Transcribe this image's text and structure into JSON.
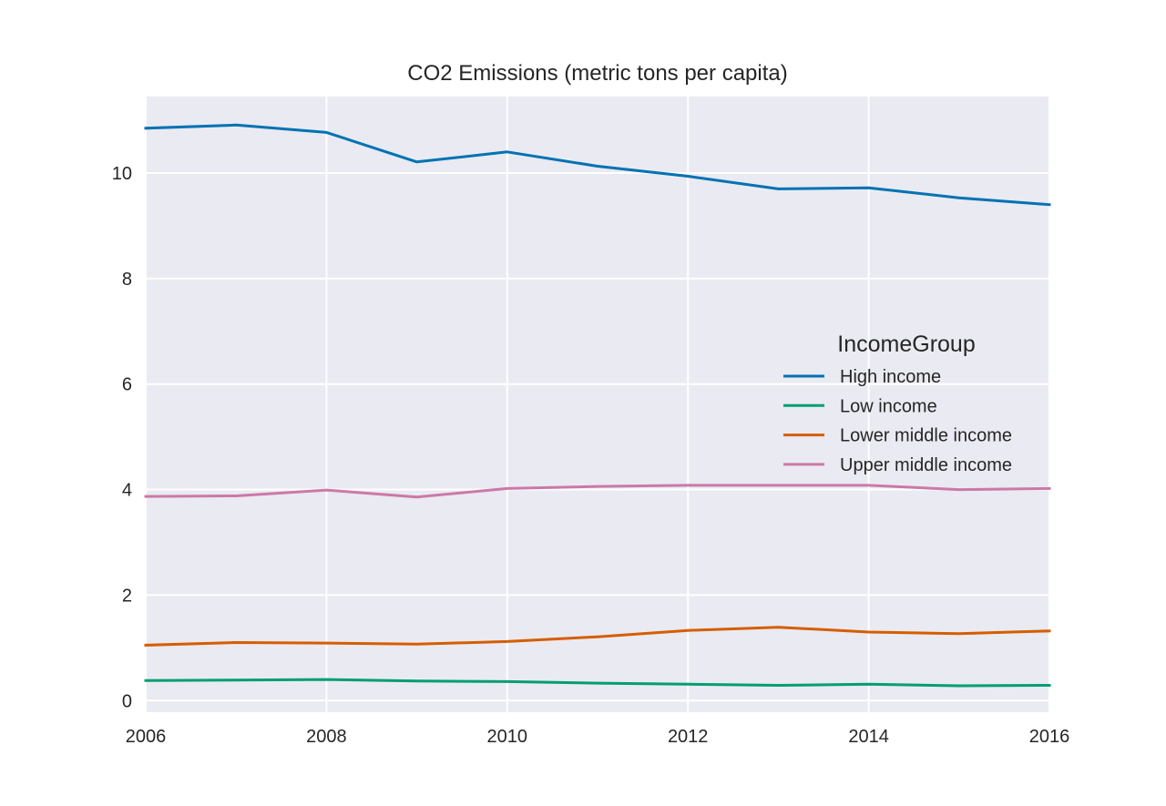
{
  "chart_data": {
    "type": "line",
    "title": "CO2 Emissions (metric tons per capita)",
    "xlabel": "",
    "ylabel": "",
    "x": [
      2006,
      2007,
      2008,
      2009,
      2010,
      2011,
      2012,
      2013,
      2014,
      2015,
      2016
    ],
    "xlim": [
      2006,
      2016
    ],
    "ylim": [
      -0.22,
      11.45
    ],
    "x_ticks": [
      "2006",
      "2008",
      "2010",
      "2012",
      "2014",
      "2016"
    ],
    "y_ticks": [
      "0",
      "2",
      "4",
      "6",
      "8",
      "10"
    ],
    "grid": true,
    "legend": {
      "title": "IncomeGroup",
      "placement": "center-right"
    },
    "series": [
      {
        "name": "High income",
        "color": "#0072b2",
        "values": [
          10.85,
          10.91,
          10.77,
          10.21,
          10.4,
          10.13,
          9.94,
          9.7,
          9.72,
          9.53,
          9.4
        ]
      },
      {
        "name": "Low income",
        "color": "#009e73",
        "values": [
          0.38,
          0.39,
          0.4,
          0.37,
          0.36,
          0.33,
          0.31,
          0.29,
          0.31,
          0.28,
          0.29
        ]
      },
      {
        "name": "Lower middle income",
        "color": "#d55e00",
        "values": [
          1.05,
          1.1,
          1.09,
          1.07,
          1.12,
          1.21,
          1.33,
          1.39,
          1.3,
          1.27,
          1.32
        ]
      },
      {
        "name": "Upper middle income",
        "color": "#cc79a7",
        "values": [
          3.87,
          3.88,
          3.99,
          3.86,
          4.02,
          4.06,
          4.08,
          4.08,
          4.08,
          4.0,
          4.02
        ]
      }
    ]
  }
}
